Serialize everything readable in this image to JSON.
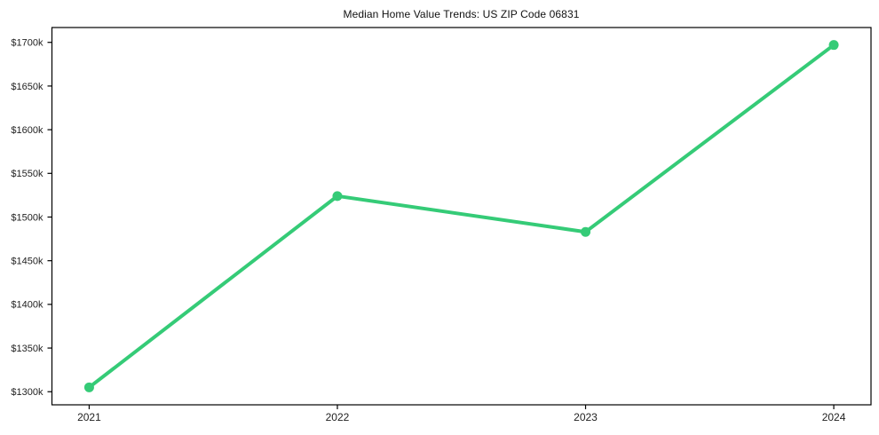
{
  "chart_data": {
    "type": "line",
    "title": "Median Home Value Trends: US ZIP Code 06831",
    "xlabel": "",
    "ylabel": "",
    "unit": "USD thousands",
    "x": [
      2021,
      2022,
      2023,
      2024
    ],
    "values": [
      1305,
      1524,
      1483,
      1697
    ],
    "x_tick_labels": [
      "2021",
      "2022",
      "2023",
      "2024"
    ],
    "y_tick_values": [
      1300,
      1350,
      1400,
      1450,
      1500,
      1550,
      1600,
      1650,
      1700
    ],
    "y_tick_labels": [
      "$1300k",
      "$1350k",
      "$1400k",
      "$1450k",
      "$1500k",
      "$1550k",
      "$1600k",
      "$1650k",
      "$1700k"
    ],
    "xlim": [
      2020.85,
      2024.15
    ],
    "ylim": [
      1285,
      1717
    ],
    "grid": false,
    "legend_position": "none",
    "line_color": "#35cb77",
    "marker_color": "#35cb77",
    "spine_color": "#000000",
    "tick_label_color": "#222222",
    "background_color": "#ffffff"
  }
}
